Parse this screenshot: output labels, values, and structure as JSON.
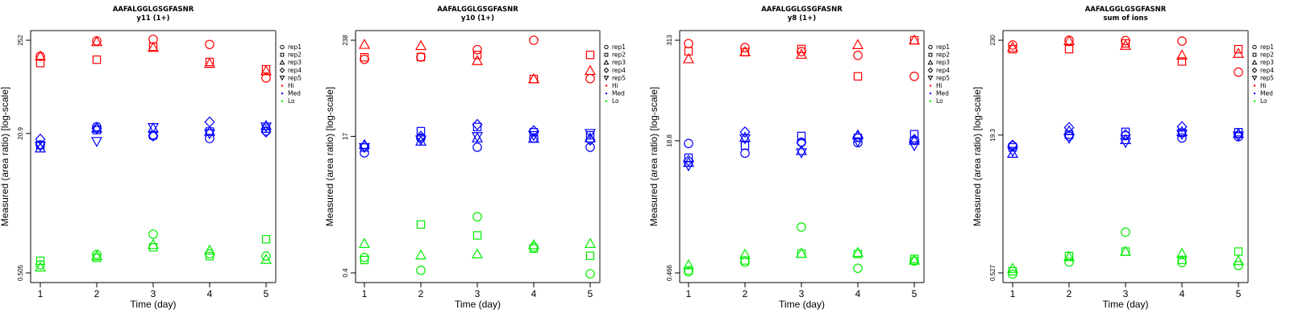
{
  "chart_data": [
    {
      "type": "scatter",
      "title": "AAFALGGLGSGFASNR",
      "subtitle": "y11 (1+)",
      "xlabel": "Time (day)",
      "ylabel": "Measured (area ratio) [log-scale]",
      "yscale": "log",
      "x_ticks": [
        "1",
        "2",
        "3",
        "4",
        "5"
      ],
      "y_ticks": [
        "252",
        "20.9",
        "0.505"
      ],
      "ylim": [
        0.505,
        252
      ],
      "legend": [
        "rep1",
        "rep2",
        "rep3",
        "rep4",
        "rep5",
        "Hi",
        "Med",
        "Lo"
      ],
      "legend_position": "right",
      "series": [
        {
          "group": "Hi",
          "rep": "rep1",
          "values": [
            164,
            247,
            258,
            225,
            92
          ]
        },
        {
          "group": "Hi",
          "rep": "rep2",
          "values": [
            137,
            150,
            212,
            141,
            116
          ]
        },
        {
          "group": "Hi",
          "rep": "rep3",
          "values": [
            164,
            241,
            207,
            135,
            111
          ]
        },
        {
          "group": "Med",
          "rep": "rep1",
          "values": [
            15.4,
            25,
            19.6,
            18.3,
            22.3
          ]
        },
        {
          "group": "Med",
          "rep": "rep2",
          "values": [
            15.4,
            22.9,
            20.0,
            22.0,
            23.8
          ]
        },
        {
          "group": "Med",
          "rep": "rep3",
          "values": [
            14.1,
            24.0,
            24.0,
            22.0,
            25.7
          ]
        },
        {
          "group": "Med",
          "rep": "rep4",
          "values": [
            17.9,
            24.0,
            19.6,
            28.4,
            21.8
          ]
        },
        {
          "group": "Med",
          "rep": "rep5",
          "values": [
            15.0,
            17.0,
            24.6,
            20.9,
            25.0
          ]
        },
        {
          "group": "Lo",
          "rep": "rep1",
          "values": [
            0.627,
            0.826,
            1.42,
            0.84,
            0.79
          ]
        },
        {
          "group": "Lo",
          "rep": "rep2",
          "values": [
            0.697,
            0.756,
            1.0,
            0.79,
            1.24
          ]
        },
        {
          "group": "Lo",
          "rep": "rep3",
          "values": [
            0.587,
            0.791,
            1.07,
            0.92,
            0.72
          ]
        }
      ]
    },
    {
      "type": "scatter",
      "title": "AAFALGGLGSGFASNR",
      "subtitle": "y10 (1+)",
      "xlabel": "Time (day)",
      "ylabel": "Measured (area ratio) [log-scale]",
      "yscale": "log",
      "x_ticks": [
        "1",
        "2",
        "3",
        "4",
        "5"
      ],
      "y_ticks": [
        "238",
        "17",
        "0.4"
      ],
      "ylim": [
        0.4,
        238
      ],
      "legend": [
        "rep1",
        "rep2",
        "rep3",
        "rep4",
        "rep5",
        "Hi",
        "Med",
        "Lo"
      ],
      "legend_position": "right",
      "series": [
        {
          "group": "Hi",
          "rep": "rep1",
          "values": [
            141,
            150,
            184,
            238,
            83
          ]
        },
        {
          "group": "Hi",
          "rep": "rep2",
          "values": [
            149,
            150,
            159,
            82,
            159
          ]
        },
        {
          "group": "Hi",
          "rep": "rep3",
          "values": [
            211,
            204,
            135,
            82,
            103
          ]
        },
        {
          "group": "Med",
          "rep": "rep1",
          "values": [
            10.8,
            16.2,
            12.6,
            16.2,
            12.6
          ]
        },
        {
          "group": "Med",
          "rep": "rep2",
          "values": [
            12.5,
            19.6,
            22.0,
            19.0,
            17.5
          ]
        },
        {
          "group": "Med",
          "rep": "rep3",
          "values": [
            13.5,
            14.8,
            16.2,
            16.0,
            16.2
          ]
        },
        {
          "group": "Med",
          "rep": "rep4",
          "values": [
            13.0,
            17.0,
            23.5,
            19.8,
            15.4
          ]
        },
        {
          "group": "Med",
          "rep": "rep5",
          "values": [
            12.6,
            15.5,
            17.0,
            17.5,
            18.5
          ]
        },
        {
          "group": "Lo",
          "rep": "rep1",
          "values": [
            0.61,
            0.43,
            1.87,
            0.81,
            0.39
          ]
        },
        {
          "group": "Lo",
          "rep": "rep2",
          "values": [
            0.57,
            1.51,
            1.12,
            0.78,
            0.64
          ]
        },
        {
          "group": "Lo",
          "rep": "rep3",
          "values": [
            0.89,
            0.65,
            0.67,
            0.86,
            0.89
          ]
        }
      ]
    },
    {
      "type": "scatter",
      "title": "AAFALGGLGSGFASNR",
      "subtitle": "y8 (1+)",
      "xlabel": "Time (day)",
      "ylabel": "Measured (area ratio) [log-scale]",
      "yscale": "log",
      "x_ticks": [
        "1",
        "2",
        "3",
        "4",
        "5"
      ],
      "y_ticks": [
        "313",
        "18.8",
        "0.466"
      ],
      "ylim": [
        0.466,
        313
      ],
      "legend": [
        "rep1",
        "rep2",
        "rep3",
        "rep4",
        "rep5",
        "Hi",
        "Med",
        "Lo"
      ],
      "legend_position": "right",
      "series": [
        {
          "group": "Hi",
          "rep": "rep1",
          "values": [
            285,
            255,
            228,
            205,
            114
          ]
        },
        {
          "group": "Hi",
          "rep": "rep2",
          "values": [
            230,
            225,
            245,
            114,
            313
          ]
        },
        {
          "group": "Hi",
          "rep": "rep3",
          "values": [
            185,
            225,
            210,
            275,
            313
          ]
        },
        {
          "group": "Med",
          "rep": "rep1",
          "values": [
            17.4,
            13.3,
            18.0,
            17.8,
            19.0
          ]
        },
        {
          "group": "Med",
          "rep": "rep2",
          "values": [
            11.7,
            16.4,
            21.5,
            20.4,
            22.6
          ]
        },
        {
          "group": "Med",
          "rep": "rep3",
          "values": [
            10.2,
            20.6,
            14.2,
            22.0,
            19.0
          ]
        },
        {
          "group": "Med",
          "rep": "rep4",
          "values": [
            10.8,
            24.0,
            17.8,
            21.0,
            19.5
          ]
        },
        {
          "group": "Med",
          "rep": "rep5",
          "values": [
            9.4,
            20.0,
            13.5,
            18.4,
            16.5
          ]
        },
        {
          "group": "Lo",
          "rep": "rep1",
          "values": [
            0.48,
            0.63,
            1.68,
            0.53,
            0.65
          ]
        },
        {
          "group": "Lo",
          "rep": "rep2",
          "values": [
            0.5,
            0.66,
            0.8,
            0.79,
            0.69
          ]
        },
        {
          "group": "Lo",
          "rep": "rep3",
          "values": [
            0.58,
            0.78,
            0.8,
            0.82,
            0.66
          ]
        }
      ]
    },
    {
      "type": "scatter",
      "title": "AAFALGGLGSGFASNR",
      "subtitle": "sum of ions",
      "xlabel": "Time (day)",
      "ylabel": "Measured (area ratio) [log-scale]",
      "yscale": "log",
      "x_ticks": [
        "1",
        "2",
        "3",
        "4",
        "5"
      ],
      "y_ticks": [
        "230",
        "19.3",
        "0.527"
      ],
      "ylim": [
        0.527,
        230
      ],
      "legend": [
        "rep1",
        "rep2",
        "rep3",
        "rep4",
        "rep5",
        "Hi",
        "Med",
        "Lo"
      ],
      "legend_position": "right",
      "series": [
        {
          "group": "Hi",
          "rep": "rep1",
          "values": [
            203,
            230,
            228,
            225,
            100
          ]
        },
        {
          "group": "Hi",
          "rep": "rep2",
          "values": [
            182,
            182,
            212,
            132,
            182
          ]
        },
        {
          "group": "Hi",
          "rep": "rep3",
          "values": [
            190,
            226,
            200,
            155,
            162
          ]
        },
        {
          "group": "Med",
          "rep": "rep1",
          "values": [
            14.6,
            18.8,
            19.0,
            17.9,
            18.5
          ]
        },
        {
          "group": "Med",
          "rep": "rep2",
          "values": [
            14.0,
            19.6,
            21.0,
            20.5,
            20.8
          ]
        },
        {
          "group": "Med",
          "rep": "rep3",
          "values": [
            11.9,
            21.5,
            17.0,
            21.0,
            20.0
          ]
        },
        {
          "group": "Med",
          "rep": "rep4",
          "values": [
            14.8,
            23.5,
            19.5,
            24.0,
            19.5
          ]
        },
        {
          "group": "Med",
          "rep": "rep5",
          "values": [
            12.7,
            17.9,
            16.0,
            19.8,
            19.0
          ]
        },
        {
          "group": "Lo",
          "rep": "rep1",
          "values": [
            0.51,
            0.7,
            1.53,
            0.69,
            0.64
          ]
        },
        {
          "group": "Lo",
          "rep": "rep2",
          "values": [
            0.55,
            0.82,
            0.92,
            0.74,
            0.92
          ]
        },
        {
          "group": "Lo",
          "rep": "rep3",
          "values": [
            0.59,
            0.8,
            0.92,
            0.87,
            0.72
          ]
        }
      ]
    }
  ],
  "colors": {
    "Hi": "#ff0000",
    "Med": "#0000ff",
    "Lo": "#00ee00",
    "axis": "#000000",
    "box": "#888888"
  },
  "shapes": {
    "rep1": "circle",
    "rep2": "square",
    "rep3": "triangle-up",
    "rep4": "diamond",
    "rep5": "triangle-down"
  }
}
